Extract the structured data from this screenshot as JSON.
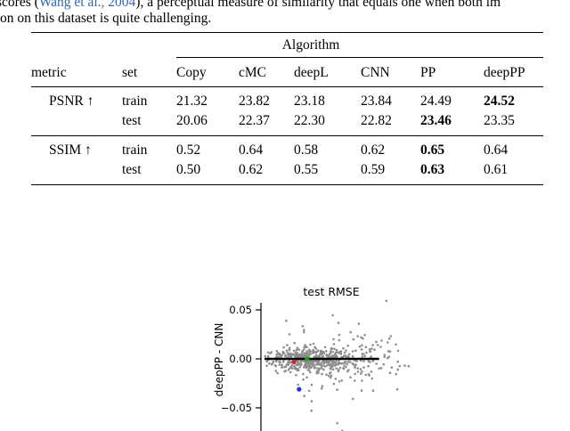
{
  "colors": {
    "citation": "#3366bb"
  },
  "page": {
    "line1_prefix": "scores (",
    "citation": "Wang et al., 2004",
    "line1_suffix": "), a perceptual measure of similarity that equals one when both im",
    "line2": "on on this dataset is quite challenging."
  },
  "table": {
    "group_header": "Algorithm",
    "col_headers": [
      "metric",
      "set",
      "Copy",
      "cMC",
      "deepL",
      "CNN",
      "PP",
      "deepPP"
    ],
    "rows": [
      {
        "metric": "PSNR ↑",
        "set": "train",
        "values": [
          "21.32",
          "23.82",
          "23.18",
          "23.84",
          "24.49",
          "24.52"
        ],
        "bold": [
          5
        ]
      },
      {
        "metric": "",
        "set": "test",
        "values": [
          "20.06",
          "22.37",
          "22.30",
          "22.82",
          "23.46",
          "23.35"
        ],
        "bold": [
          4
        ]
      },
      {
        "metric": "SSIM ↑",
        "set": "train",
        "values": [
          "0.52",
          "0.64",
          "0.58",
          "0.62",
          "0.65",
          "0.64"
        ],
        "bold": [
          4
        ]
      },
      {
        "metric": "",
        "set": "test",
        "values": [
          "0.50",
          "0.62",
          "0.55",
          "0.59",
          "0.63",
          "0.61"
        ],
        "bold": [
          4
        ]
      }
    ]
  },
  "chart_data": {
    "type": "scatter",
    "title": "test RMSE",
    "xlabel": "",
    "ylabel": "deepPP - CNN",
    "yticks": [
      0.05,
      0.0,
      -0.05
    ],
    "ytick_labels": [
      "0.05",
      "0.00",
      "−0.05"
    ],
    "ylim": [
      -0.08,
      0.065
    ],
    "xlim": [
      0,
      1
    ],
    "grid": false,
    "legend": false,
    "zero_line": {
      "y": 0.0,
      "x_start": 0.0,
      "x_end": 0.78
    },
    "gray_points": {
      "count": 620,
      "seed": 12,
      "radius": 1.3,
      "color": "#8e8e8e",
      "clusters": [
        {
          "frac": 0.62,
          "x_mean": 0.3,
          "x_sd": 0.13,
          "y_mean": -0.001,
          "y_sd": 0.0055
        },
        {
          "frac": 0.3,
          "x_mean": 0.52,
          "x_sd": 0.22,
          "y_mean": 0.0,
          "y_sd": 0.012
        },
        {
          "frac": 0.08,
          "x_mean": 0.45,
          "x_sd": 0.3,
          "y_mean": 0.0,
          "y_sd": 0.028
        }
      ]
    },
    "highlight_points": [
      {
        "name": "red-point",
        "x": 0.2,
        "y": -0.003,
        "color": "#d62222",
        "radius": 2.6
      },
      {
        "name": "green-point",
        "x": 0.29,
        "y": 0.0,
        "color": "#22a022",
        "radius": 2.6
      },
      {
        "name": "blue-point",
        "x": 0.235,
        "y": -0.031,
        "color": "#2233dd",
        "radius": 2.6
      }
    ]
  }
}
